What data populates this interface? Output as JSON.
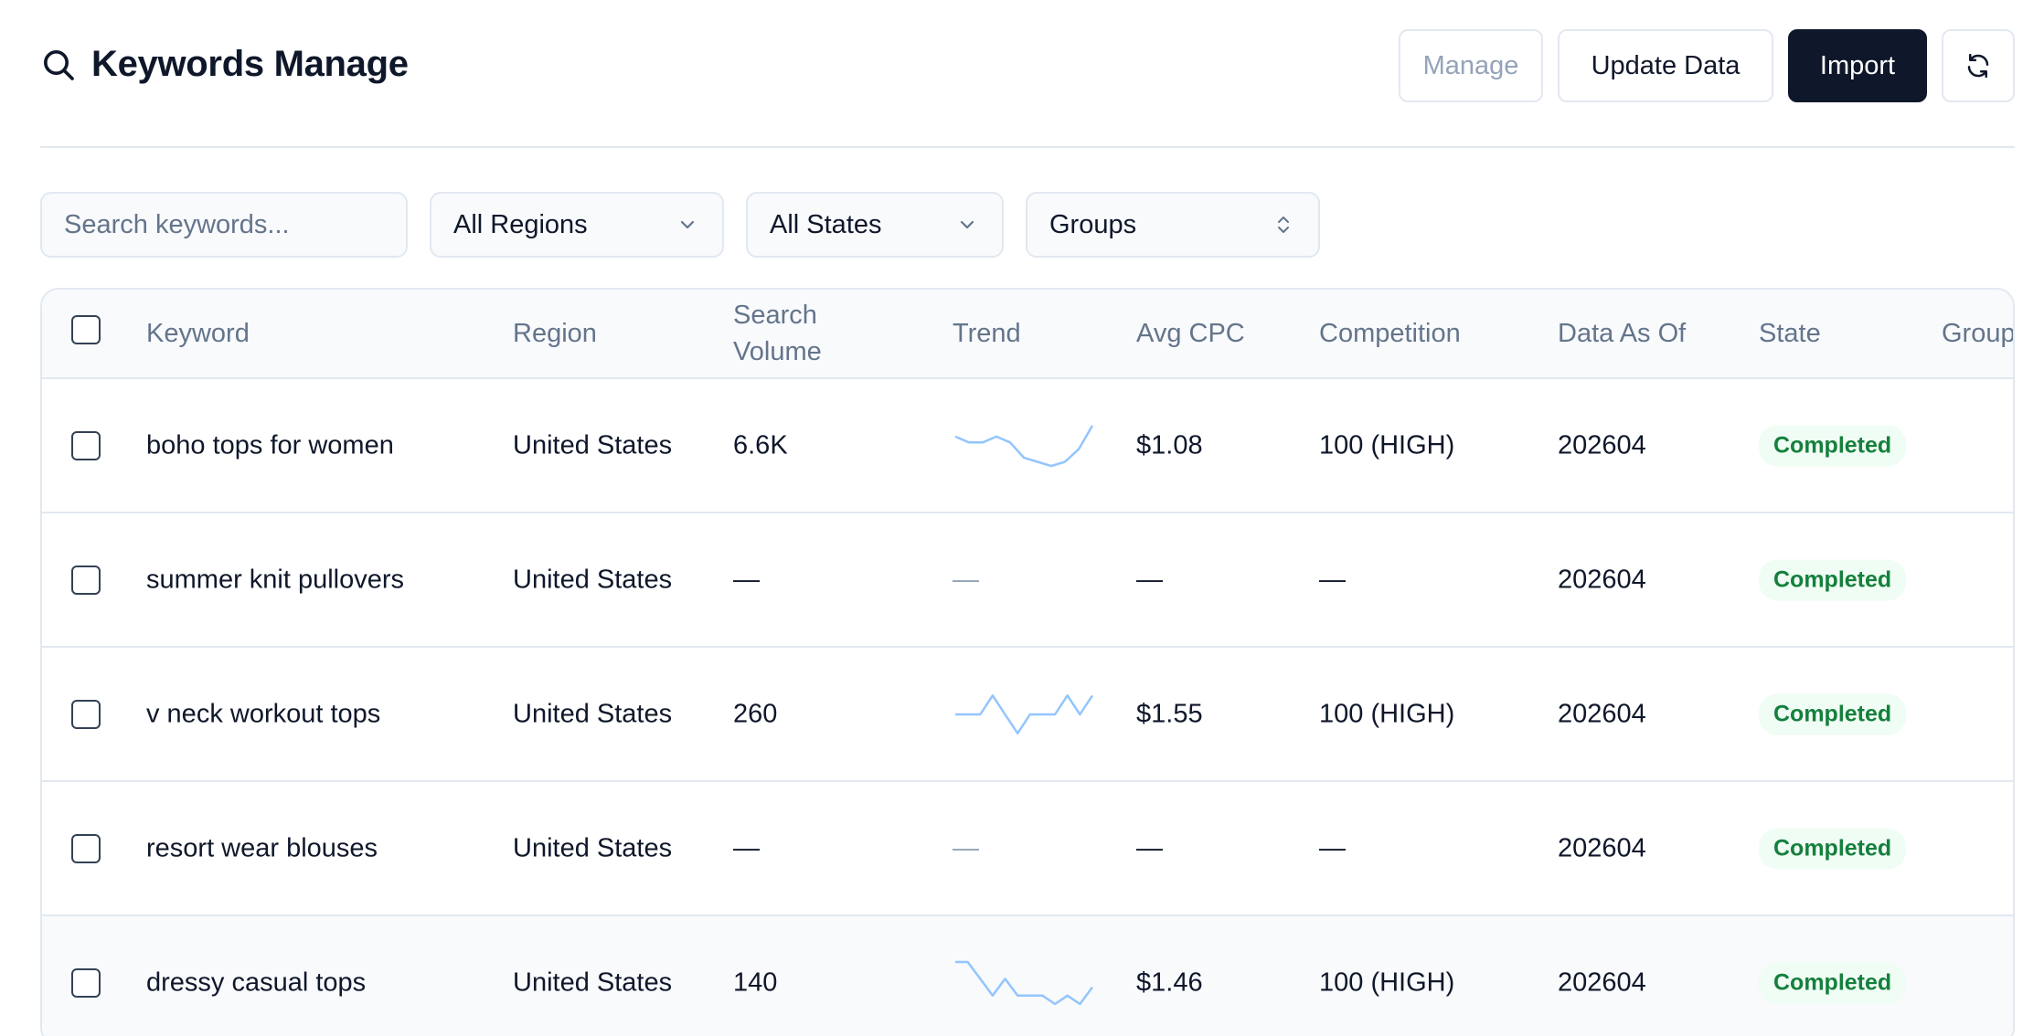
{
  "header": {
    "title": "Keywords Manage",
    "buttons": {
      "manage": "Manage",
      "update": "Update Data",
      "import": "Import"
    }
  },
  "filters": {
    "search_placeholder": "Search keywords...",
    "region": "All Regions",
    "state": "All States",
    "group": "Groups"
  },
  "table": {
    "columns": {
      "keyword": "Keyword",
      "region": "Region",
      "volume_line1": "Search",
      "volume_line2": "Volume",
      "trend": "Trend",
      "cpc": "Avg CPC",
      "competition": "Competition",
      "date": "Data As Of",
      "state": "State",
      "group": "Group"
    },
    "rows": [
      {
        "keyword": "boho tops for women",
        "region": "United States",
        "volume": "6.6K",
        "cpc": "$1.08",
        "competition": "100 (HIGH)",
        "date": "202604",
        "state": "Completed",
        "trend": [
          0.72,
          0.58,
          0.58,
          0.72,
          0.58,
          0.22,
          0.12,
          0.02,
          0.12,
          0.42,
          0.98
        ]
      },
      {
        "keyword": "summer knit pullovers",
        "region": "United States",
        "volume": "—",
        "trend_text": "—",
        "cpc": "—",
        "competition": "—",
        "date": "202604",
        "state": "Completed"
      },
      {
        "keyword": "v neck workout tops",
        "region": "United States",
        "volume": "260",
        "cpc": "$1.55",
        "competition": "100 (HIGH)",
        "date": "202604",
        "state": "Completed",
        "trend": [
          0.5,
          0.5,
          0.5,
          0.95,
          0.5,
          0.05,
          0.5,
          0.5,
          0.5,
          0.95,
          0.5,
          0.95
        ]
      },
      {
        "keyword": "resort wear blouses",
        "region": "United States",
        "volume": "—",
        "trend_text": "—",
        "cpc": "—",
        "competition": "—",
        "date": "202604",
        "state": "Completed"
      },
      {
        "keyword": "dressy casual tops",
        "region": "United States",
        "volume": "140",
        "cpc": "$1.46",
        "competition": "100 (HIGH)",
        "date": "202604",
        "state": "Completed",
        "trend": [
          1.0,
          1.0,
          0.6,
          0.2,
          0.6,
          0.2,
          0.2,
          0.2,
          0.0,
          0.2,
          0.0,
          0.4
        ]
      }
    ]
  },
  "colors": {
    "primary": "#0f172a",
    "border": "#e2e8f0",
    "muted_text": "#64748b",
    "success_bg": "#f0fdf4",
    "success_text": "#15803d",
    "trend_line": "#93c5fd"
  }
}
